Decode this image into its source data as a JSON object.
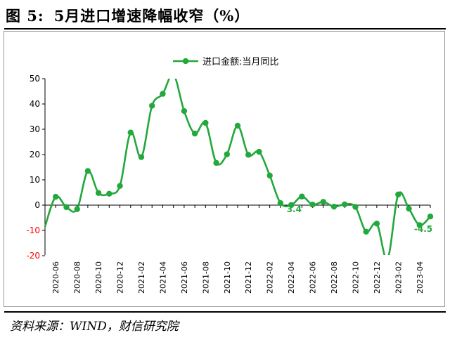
{
  "figure": {
    "number": "图 5:",
    "title": "5月进口增速降幅收窄（%）",
    "source": "资料来源：WIND，财信研究院"
  },
  "chart_data": {
    "type": "line",
    "title": "",
    "xlabel": "",
    "ylabel": "",
    "ylim": [
      -20,
      50
    ],
    "yticks": [
      -20,
      -10,
      0,
      10,
      20,
      30,
      40,
      50
    ],
    "negative_tick_color": "#ff0000",
    "line_color": "#22a83c",
    "grid": false,
    "legend": {
      "position": "top-center"
    },
    "x_tick_labels": [
      "2020-06",
      "2020-08",
      "2020-10",
      "2020-12",
      "2021-02",
      "2021-04",
      "2021-06",
      "2021-08",
      "2021-10",
      "2021-12",
      "2022-02",
      "2022-04",
      "2022-06",
      "2022-08",
      "2022-10",
      "2022-12",
      "2023-02",
      "2023-04"
    ],
    "series": [
      {
        "name": "进口金额:当月同比",
        "x": [
          "2020-05",
          "2020-06",
          "2020-07",
          "2020-08",
          "2020-09",
          "2020-10",
          "2020-11",
          "2020-12",
          "2021-01",
          "2021-02",
          "2021-03",
          "2021-04",
          "2021-05",
          "2021-06",
          "2021-07",
          "2021-08",
          "2021-09",
          "2021-10",
          "2021-11",
          "2021-12",
          "2022-01",
          "2022-02",
          "2022-03",
          "2022-04",
          "2022-05",
          "2022-06",
          "2022-07",
          "2022-08",
          "2022-09",
          "2022-10",
          "2022-11",
          "2022-12",
          "2023-01",
          "2023-02",
          "2023-03",
          "2023-04",
          "2023-05"
        ],
        "values": [
          -8.5,
          3.3,
          -0.8,
          -1.6,
          13.5,
          4.8,
          4.5,
          7.6,
          28.7,
          19.0,
          39.3,
          44.0,
          51.6,
          37.2,
          28.3,
          32.5,
          16.7,
          20.1,
          31.4,
          19.9,
          21.1,
          11.7,
          0.8,
          0.0,
          3.4,
          0.2,
          1.3,
          -0.6,
          0.3,
          -0.7,
          -10.5,
          -7.3,
          -21.3,
          4.2,
          -1.4,
          -7.9,
          -4.5
        ]
      }
    ],
    "data_labels": [
      {
        "x": "2022-05",
        "text": "3.4"
      },
      {
        "x": "2023-05",
        "text": "-4.5"
      }
    ]
  }
}
